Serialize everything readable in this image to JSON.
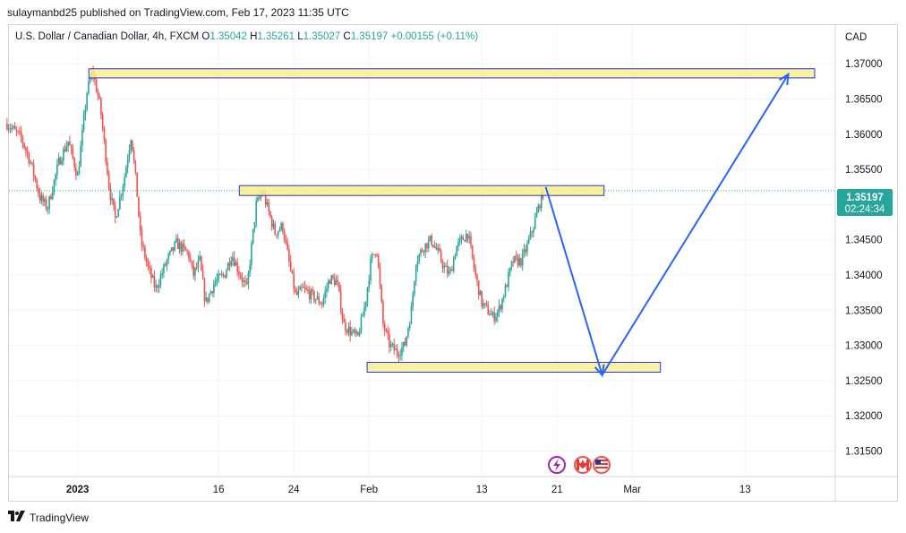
{
  "publish_line": "sulaymanbd25 published on TradingView.com, Feb 17, 2023 11:35 UTC",
  "legend": {
    "title": "U.S. Dollar / Canadian Dollar, 4h, FXCM",
    "o_label": "O",
    "o_value": "1.35042",
    "h_label": "H",
    "h_value": "1.35261",
    "l_label": "L",
    "l_value": "1.35027",
    "c_label": "C",
    "c_value": "1.35197",
    "change": "+0.00155 (+0.11%)"
  },
  "currency_label": "CAD",
  "price_tag": {
    "price": "1.35197",
    "countdown": "02:24:34",
    "value": 1.35197
  },
  "footer_brand": "TradingView",
  "colors": {
    "up": "#26a69a",
    "down": "#ef5350",
    "zone_fill": "#f7f08b",
    "zone_border": "#2a2ee8",
    "projection": "#2962ff",
    "price_tag": "#26a69a",
    "grid": "#f0f3fa"
  },
  "event_icons": [
    "lightning-icon",
    "canada-flag-icon",
    "us-flag-icon"
  ],
  "chart_data": {
    "type": "candlestick",
    "y_ticks": [
      "1.37000",
      "1.36500",
      "1.36000",
      "1.35500",
      "1.35000",
      "1.34500",
      "1.34000",
      "1.33500",
      "1.33000",
      "1.32500",
      "1.32000",
      "1.31500"
    ],
    "ylim": [
      1.3115,
      1.3755
    ],
    "x_ticks": [
      {
        "label": "2023",
        "day": 0
      },
      {
        "label": "16",
        "day": 15
      },
      {
        "label": "24",
        "day": 23
      },
      {
        "label": "Feb",
        "day": 31
      },
      {
        "label": "13",
        "day": 43
      },
      {
        "label": "21",
        "day": 51
      },
      {
        "label": "Mar",
        "day": 59
      },
      {
        "label": "13",
        "day": 71
      }
    ],
    "xlim": [
      -7.3,
      80.5
    ],
    "anchors": [
      [
        -7.5,
        1.3615
      ],
      [
        -6,
        1.3595
      ],
      [
        -5,
        1.356
      ],
      [
        -4,
        1.351
      ],
      [
        -3.2,
        1.3495
      ],
      [
        -2,
        1.356
      ],
      [
        -1,
        1.359
      ],
      [
        0,
        1.354
      ],
      [
        0.5,
        1.36
      ],
      [
        1,
        1.366
      ],
      [
        1.6,
        1.369
      ],
      [
        2.4,
        1.364
      ],
      [
        3.4,
        1.352
      ],
      [
        4,
        1.348
      ],
      [
        5,
        1.354
      ],
      [
        5.7,
        1.36
      ],
      [
        6.3,
        1.352
      ],
      [
        6.7,
        1.345
      ],
      [
        7.5,
        1.341
      ],
      [
        8.3,
        1.338
      ],
      [
        9.5,
        1.342
      ],
      [
        10.5,
        1.3445
      ],
      [
        11.8,
        1.343
      ],
      [
        12.3,
        1.34
      ],
      [
        13,
        1.342
      ],
      [
        13.6,
        1.336
      ],
      [
        14.6,
        1.339
      ],
      [
        15.6,
        1.34
      ],
      [
        16.4,
        1.343
      ],
      [
        17.3,
        1.34
      ],
      [
        18,
        1.338
      ],
      [
        18.5,
        1.344
      ],
      [
        19,
        1.35
      ],
      [
        19.7,
        1.3518
      ],
      [
        20.3,
        1.349
      ],
      [
        21,
        1.346
      ],
      [
        21.8,
        1.347
      ],
      [
        22.6,
        1.341
      ],
      [
        23.2,
        1.337
      ],
      [
        24,
        1.338
      ],
      [
        25,
        1.337
      ],
      [
        26,
        1.336
      ],
      [
        26.8,
        1.3395
      ],
      [
        27.6,
        1.339
      ],
      [
        28.3,
        1.333
      ],
      [
        29,
        1.332
      ],
      [
        29.8,
        1.331
      ],
      [
        30.6,
        1.336
      ],
      [
        31.2,
        1.342
      ],
      [
        31.8,
        1.344
      ],
      [
        32.5,
        1.333
      ],
      [
        33.2,
        1.33
      ],
      [
        34,
        1.329
      ],
      [
        34.8,
        1.33
      ],
      [
        35.5,
        1.335
      ],
      [
        36,
        1.342
      ],
      [
        36.8,
        1.344
      ],
      [
        37.6,
        1.345
      ],
      [
        38.4,
        1.343
      ],
      [
        39,
        1.341
      ],
      [
        39.6,
        1.34
      ],
      [
        40.3,
        1.344
      ],
      [
        40.9,
        1.345
      ],
      [
        41.5,
        1.346
      ],
      [
        42.3,
        1.34
      ],
      [
        43,
        1.336
      ],
      [
        43.6,
        1.335
      ],
      [
        44.2,
        1.334
      ],
      [
        44.8,
        1.335
      ],
      [
        45.5,
        1.338
      ],
      [
        46.3,
        1.342
      ],
      [
        47.2,
        1.342
      ],
      [
        47.8,
        1.344
      ],
      [
        48.5,
        1.347
      ],
      [
        49.1,
        1.35
      ],
      [
        49.6,
        1.352
      ]
    ],
    "zones": [
      {
        "name": "top-zone",
        "x0": 1.2,
        "x1": 78.4,
        "y_low": 1.368,
        "y_high": 1.3693
      },
      {
        "name": "mid-zone",
        "x0": 17.2,
        "x1": 56.0,
        "y_low": 1.3513,
        "y_high": 1.3527
      },
      {
        "name": "bottom-zone",
        "x0": 30.8,
        "x1": 62.0,
        "y_low": 1.3262,
        "y_high": 1.3276
      }
    ],
    "projection": [
      [
        49.8,
        1.3525
      ],
      [
        55.8,
        1.3258
      ],
      [
        75.6,
        1.3685
      ]
    ]
  }
}
